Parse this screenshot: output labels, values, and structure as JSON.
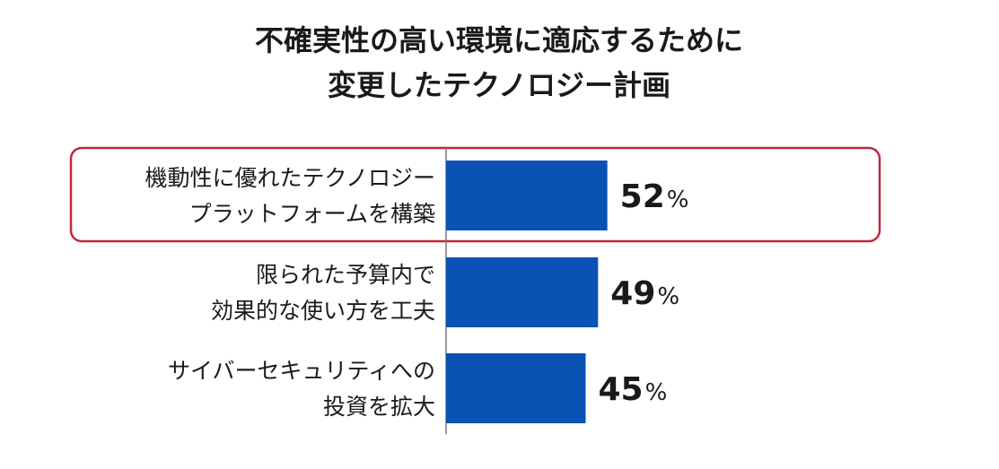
{
  "chart_data": {
    "type": "bar",
    "orientation": "horizontal",
    "title_lines": [
      "不確実性の高い環境に適応するために",
      "変更したテクノロジー計画"
    ],
    "categories": [
      [
        "機動性に優れたテクノロジー",
        "プラットフォームを構築"
      ],
      [
        "限られた予算内で",
        "効果的な使い方を工夫"
      ],
      [
        "サイバーセキュリティへの",
        "投資を拡大"
      ]
    ],
    "values": [
      52,
      49,
      45
    ],
    "value_labels": [
      "52",
      "49",
      "45"
    ],
    "unit": "%",
    "xlim": [
      0,
      100
    ],
    "highlighted_index": 0,
    "grid": false,
    "colors": {
      "bar": "#0a52b4",
      "highlight_border": "#c0283c",
      "text": "#1a1a1a",
      "axis": "#777777"
    }
  }
}
